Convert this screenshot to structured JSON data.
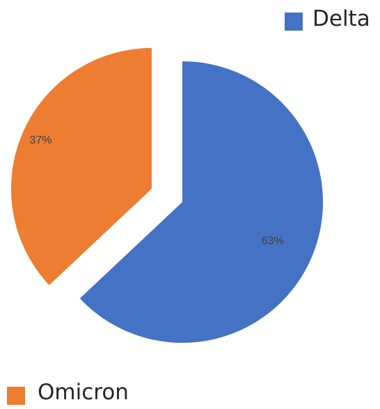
{
  "chart_data": {
    "type": "pie",
    "exploded": true,
    "legend": "split",
    "slices": [
      {
        "label": "Delta",
        "value": 63,
        "display": "63%",
        "color": "#4472C4"
      },
      {
        "label": "Omicron",
        "value": 37,
        "display": "37%",
        "color": "#ED7D31"
      }
    ]
  }
}
